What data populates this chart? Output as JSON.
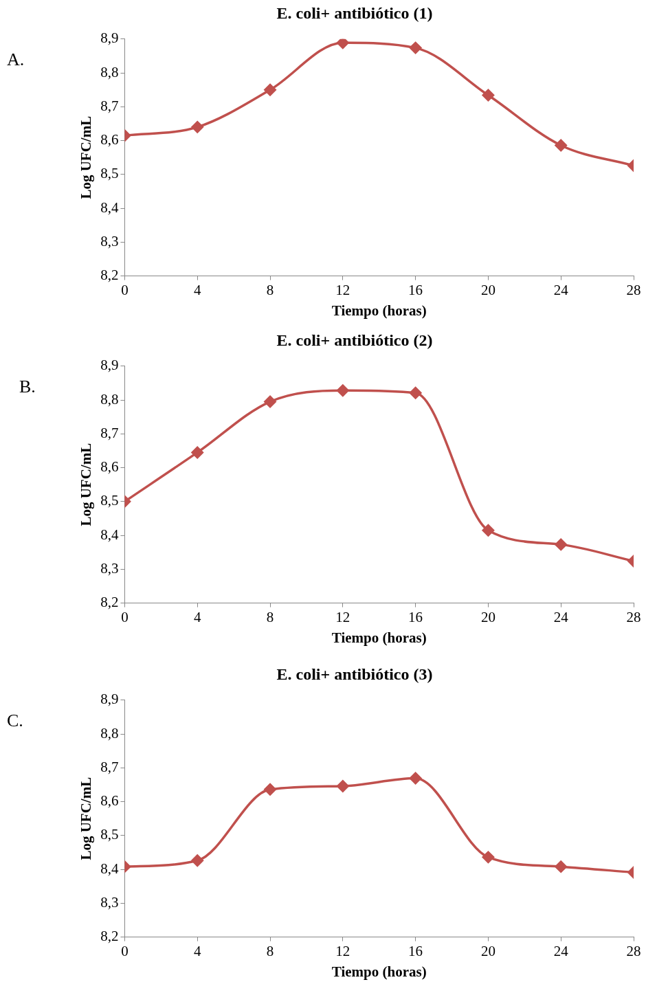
{
  "chart_data": [
    {
      "type": "line",
      "title": "E. coli+ antibiótico (1)",
      "xlabel": "Tiempo (horas)",
      "ylabel": "Log UFC/mL",
      "annotations": [
        "A."
      ],
      "x": [
        0,
        4,
        8,
        12,
        16,
        20,
        24,
        28
      ],
      "series": [
        {
          "color": "#c0504d",
          "values": [
            8.615,
            8.64,
            8.75,
            8.889,
            8.874,
            8.734,
            8.586,
            8.526
          ]
        }
      ],
      "xlim": [
        0,
        28
      ],
      "xticks": [
        0,
        4,
        8,
        12,
        16,
        20,
        24,
        28
      ],
      "ylim": [
        8.2,
        8.9
      ],
      "yticks": [
        {
          "value": 8.2,
          "label": "8,2"
        },
        {
          "value": 8.3,
          "label": "8,3"
        },
        {
          "value": 8.4,
          "label": "8,4"
        },
        {
          "value": 8.5,
          "label": "8,5"
        },
        {
          "value": 8.6,
          "label": "8,6"
        },
        {
          "value": 8.7,
          "label": "8,7"
        },
        {
          "value": 8.8,
          "label": "8,8"
        },
        {
          "value": 8.9,
          "label": "8,9"
        }
      ],
      "marker": "diamond",
      "line_style": "solid"
    },
    {
      "type": "line",
      "title": "E. coli+ antibiótico (2)",
      "xlabel": "Tiempo (horas)",
      "ylabel": "Log UFC/mL",
      "annotations": [
        "B."
      ],
      "x": [
        0,
        4,
        8,
        12,
        16,
        20,
        24,
        28
      ],
      "series": [
        {
          "color": "#c0504d",
          "values": [
            8.5,
            8.645,
            8.795,
            8.828,
            8.821,
            8.415,
            8.373,
            8.324
          ]
        }
      ],
      "xlim": [
        0,
        28
      ],
      "xticks": [
        0,
        4,
        8,
        12,
        16,
        20,
        24,
        28
      ],
      "ylim": [
        8.2,
        8.9
      ],
      "yticks": [
        {
          "value": 8.2,
          "label": "8,2"
        },
        {
          "value": 8.3,
          "label": "8,3"
        },
        {
          "value": 8.4,
          "label": "8,4"
        },
        {
          "value": 8.5,
          "label": "8,5"
        },
        {
          "value": 8.6,
          "label": "8,6"
        },
        {
          "value": 8.7,
          "label": "8,7"
        },
        {
          "value": 8.8,
          "label": "8,8"
        },
        {
          "value": 8.9,
          "label": "8,9"
        }
      ],
      "marker": "diamond",
      "line_style": "solid"
    },
    {
      "type": "line",
      "title": "E. coli+ antibiótico (3)",
      "xlabel": "Tiempo (horas)",
      "ylabel": "Log UFC/mL",
      "annotations": [
        "C."
      ],
      "x": [
        0,
        4,
        8,
        12,
        16,
        20,
        24,
        28
      ],
      "series": [
        {
          "color": "#c0504d",
          "values": [
            8.408,
            8.426,
            8.636,
            8.646,
            8.669,
            8.436,
            8.408,
            8.391
          ]
        }
      ],
      "xlim": [
        0,
        28
      ],
      "xticks": [
        0,
        4,
        8,
        12,
        16,
        20,
        24,
        28
      ],
      "ylim": [
        8.2,
        8.9
      ],
      "yticks": [
        {
          "value": 8.2,
          "label": "8,2"
        },
        {
          "value": 8.3,
          "label": "8,3"
        },
        {
          "value": 8.4,
          "label": "8,4"
        },
        {
          "value": 8.5,
          "label": "8,5"
        },
        {
          "value": 8.6,
          "label": "8,6"
        },
        {
          "value": 8.7,
          "label": "8,7"
        },
        {
          "value": 8.8,
          "label": "8,8"
        },
        {
          "value": 8.9,
          "label": "8,9"
        }
      ],
      "marker": "diamond",
      "line_style": "solid"
    }
  ]
}
